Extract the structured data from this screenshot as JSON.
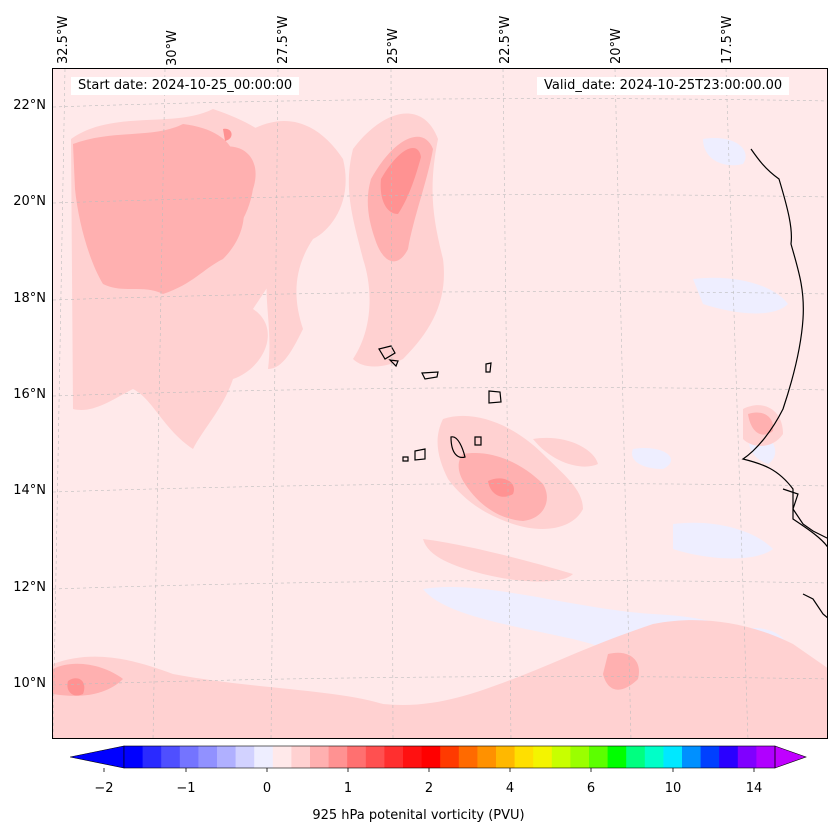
{
  "map": {
    "start_date": "Start date: 2024-10-25_00:00:00",
    "valid_date": "Valid_date: 2024-10-25T23:00:00.00",
    "longitude_labels": [
      "32.5°W",
      "30°W",
      "27.5°W",
      "25°W",
      "22.5°W",
      "20°W",
      "17.5°W"
    ],
    "latitude_labels": [
      "22°N",
      "20°N",
      "18°N",
      "16°N",
      "14°N",
      "12°N",
      "10°N"
    ]
  },
  "colorbar": {
    "label": "925 hPa potenital vorticity (PVU)",
    "ticks": [
      "−2",
      "−1",
      "0",
      "1",
      "2",
      "4",
      "6",
      "10",
      "14"
    ],
    "colors": [
      "#0000ff",
      "#2a2aff",
      "#4f4fff",
      "#7474ff",
      "#9191ff",
      "#b0b0ff",
      "#d2d2ff",
      "#eeeeff",
      "#ffe9ea",
      "#ffd1d1",
      "#ffb0b0",
      "#ff9292",
      "#ff7070",
      "#ff5050",
      "#ff2f2f",
      "#ff1111",
      "#ff0000",
      "#ff3a00",
      "#ff6a00",
      "#ff9100",
      "#ffb800",
      "#ffdf00",
      "#f4f400",
      "#c8ff00",
      "#9aff00",
      "#5cff00",
      "#00ff00",
      "#00ff80",
      "#00ffc8",
      "#00e8ff",
      "#0090ff",
      "#0040ff",
      "#2a00ff",
      "#8000ff",
      "#b000ff"
    ],
    "extend_min_color": "#0000ff",
    "extend_max_color": "#c000ff"
  }
}
